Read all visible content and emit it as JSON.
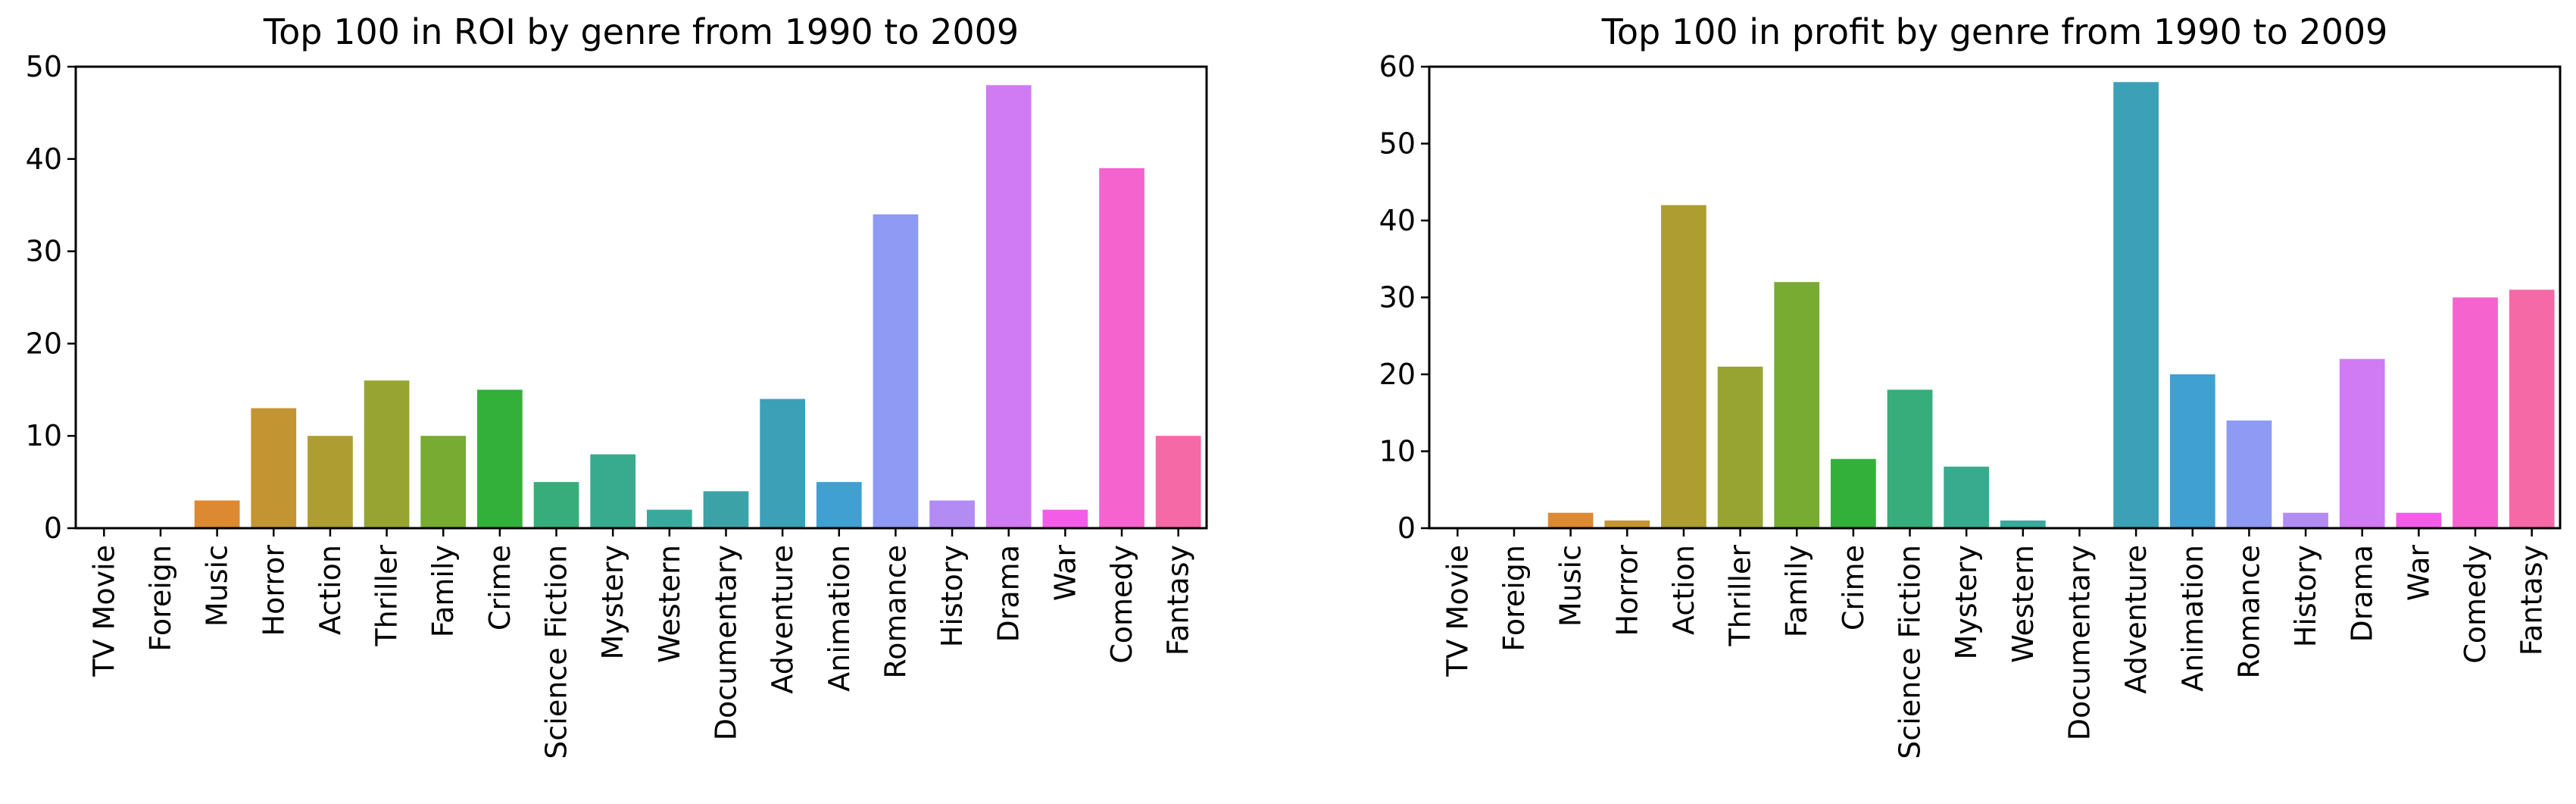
{
  "chart_data": [
    {
      "type": "bar",
      "title": "Top 100 in ROI by genre from 1990 to 2009",
      "xlabel": "",
      "ylabel": "",
      "ylim": [
        0,
        50
      ],
      "yticks": [
        0,
        10,
        20,
        30,
        40,
        50
      ],
      "grid": false,
      "categories": [
        "TV Movie",
        "Foreign",
        "Music",
        "Horror",
        "Action",
        "Thriller",
        "Family",
        "Crime",
        "Science Fiction",
        "Mystery",
        "Western",
        "Documentary",
        "Adventure",
        "Animation",
        "Romance",
        "History",
        "Drama",
        "War",
        "Comedy",
        "Fantasy"
      ],
      "values": [
        0,
        0,
        3,
        13,
        10,
        16,
        10,
        15,
        5,
        8,
        2,
        4,
        14,
        5,
        34,
        3,
        48,
        2,
        39,
        10
      ],
      "colors": [
        "#f77189",
        "#f7754f",
        "#dc8932",
        "#c39532",
        "#ae9d31",
        "#97a431",
        "#77ab31",
        "#33b039",
        "#36ad7a",
        "#38aa8d",
        "#39a99e",
        "#3ba3a8",
        "#3ca1b7",
        "#40a0d2",
        "#8e9af3",
        "#b28cf3",
        "#d07bf3",
        "#f35ce8",
        "#f563cf",
        "#f569a7"
      ]
    },
    {
      "type": "bar",
      "title": "Top 100 in profit by genre from 1990 to 2009",
      "xlabel": "",
      "ylabel": "",
      "ylim": [
        0,
        60
      ],
      "yticks": [
        0,
        10,
        20,
        30,
        40,
        50,
        60
      ],
      "grid": false,
      "categories": [
        "TV Movie",
        "Foreign",
        "Music",
        "Horror",
        "Action",
        "Thriller",
        "Family",
        "Crime",
        "Science Fiction",
        "Mystery",
        "Western",
        "Documentary",
        "Adventure",
        "Animation",
        "Romance",
        "History",
        "Drama",
        "War",
        "Comedy",
        "Fantasy"
      ],
      "values": [
        0,
        0,
        2,
        1,
        42,
        21,
        32,
        9,
        18,
        8,
        1,
        0,
        58,
        20,
        14,
        2,
        22,
        2,
        30,
        31
      ],
      "colors": [
        "#f77189",
        "#f7754f",
        "#dc8932",
        "#c39532",
        "#ae9d31",
        "#97a431",
        "#77ab31",
        "#33b039",
        "#36ad7a",
        "#38aa8d",
        "#39a99e",
        "#3ba3a8",
        "#3ca1b7",
        "#40a0d2",
        "#8e9af3",
        "#b28cf3",
        "#d07bf3",
        "#f35ce8",
        "#f563cf",
        "#f569a7"
      ]
    }
  ]
}
